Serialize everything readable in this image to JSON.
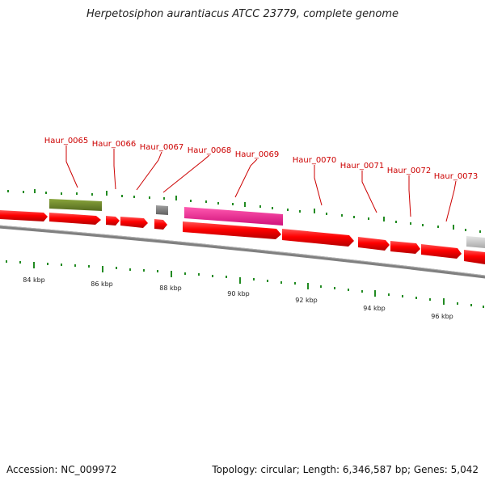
{
  "title": "Herpetosiphon aurantiacus ATCC 23779, complete genome",
  "accession": "Accession: NC_009972",
  "summary": "Topology: circular; Length: 6,346,587 bp; Genes: 5,042",
  "colors": {
    "forward_gene": "#ff0000",
    "reverse_gene_olive": "#6b8e23",
    "reverse_gene_gray": "#888888",
    "reverse_gene_magenta": "#ff1493",
    "reverse_gene_light": "#cccccc",
    "backbone": "#808080",
    "tick": "#228b22",
    "label": "#cc0000"
  },
  "scale_labels": [
    "84 kbp",
    "86 kbp",
    "88 kbp",
    "90 kbp",
    "92 kbp",
    "94 kbp",
    "96 kbp"
  ],
  "gene_labels": [
    "Haur_0065",
    "Haur_0066",
    "Haur_0067",
    "Haur_0068",
    "Haur_0069",
    "Haur_0070",
    "Haur_0071",
    "Haur_0072",
    "Haur_0073"
  ]
}
